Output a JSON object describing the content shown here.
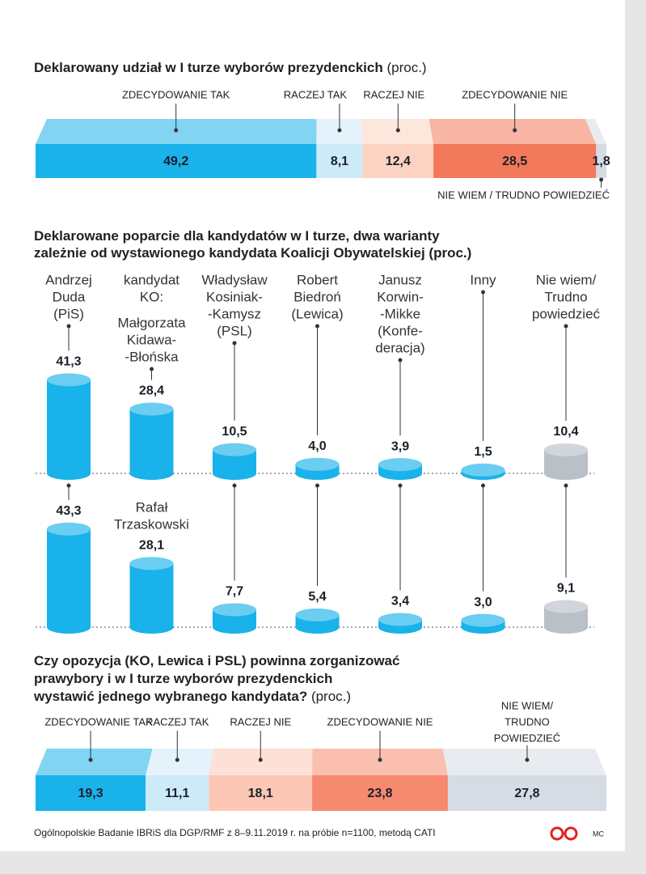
{
  "chart_data": [
    {
      "type": "stacked_bar",
      "title": "Deklarowany udział w I turze wyborów prezydenckich",
      "unit": "(proc.)",
      "categories": [
        "ZDECYDOWANIE TAK",
        "RACZEJ TAK",
        "RACZEJ NIE",
        "ZDECYDOWANIE NIE",
        "NIE WIEM / TRUDNO POWIEDZIEĆ"
      ],
      "values": [
        49.2,
        8.1,
        12.4,
        28.5,
        1.8
      ],
      "value_labels": [
        "49,2",
        "8,1",
        "12,4",
        "28,5",
        "1,8"
      ],
      "colors": [
        "#19b2ea",
        "#cdeaf8",
        "#fcd3c2",
        "#f2795a",
        "#d6dce3"
      ]
    },
    {
      "type": "cylinder",
      "title": [
        "Deklarowane poparcie dla kandydatów w I turze, dwa warianty",
        "zależnie od wystawionego kandydata Koalicji Obywatelskiej (proc.)"
      ],
      "categories": [
        [
          "Andrzej",
          "Duda",
          "(PiS)"
        ],
        [
          "kandydat",
          "KO:"
        ],
        [
          "Władysław",
          "Kosiniak-",
          "-Kamysz",
          "(PSL)"
        ],
        [
          "Robert",
          "Biedroń",
          "(Lewica)"
        ],
        [
          "Janusz",
          "Korwin-",
          "-Mikke",
          "(Konfe-",
          "deracja)"
        ],
        [
          "Inny"
        ],
        [
          "Nie wiem/",
          "Trudno",
          "powiedzieć"
        ]
      ],
      "colors": [
        "#19b2ea",
        "#19b2ea",
        "#19b2ea",
        "#19b2ea",
        "#19b2ea",
        "#19b2ea",
        "#b9c0c7"
      ],
      "series": [
        {
          "labels": [
            null,
            [
              "Małgorzata",
              "Kidawa-",
              "-Błońska"
            ],
            null,
            null,
            null,
            null,
            null
          ],
          "values": [
            41.3,
            28.4,
            10.5,
            4.0,
            3.9,
            1.5,
            10.4
          ],
          "value_labels": [
            "41,3",
            "28,4",
            "10,5",
            "4,0",
            "3,9",
            "1,5",
            "10,4"
          ]
        },
        {
          "labels": [
            null,
            [
              "Rafał",
              "Trzaskowski"
            ],
            null,
            null,
            null,
            null,
            null
          ],
          "values": [
            43.3,
            28.1,
            7.7,
            5.4,
            3.4,
            3.0,
            9.1
          ],
          "value_labels": [
            "43,3",
            "28,1",
            "7,7",
            "5,4",
            "3,4",
            "3,0",
            "9,1"
          ]
        }
      ]
    },
    {
      "type": "stacked_bar",
      "title": [
        "Czy opozycja (KO, Lewica i PSL) powinna zorganizować",
        "prawybory i w I turze wyborów prezydenckich",
        "wystawić jednego wybranego kandydata?"
      ],
      "unit": "(proc.)",
      "categories": [
        "ZDECYDOWANIE TAK",
        "RACZEJ TAK",
        "RACZEJ NIE",
        "ZDECYDOWANIE NIE",
        [
          "NIE WIEM/",
          "TRUDNO",
          "POWIEDZIEĆ"
        ]
      ],
      "values": [
        19.3,
        11.1,
        18.1,
        23.8,
        27.8
      ],
      "value_labels": [
        "19,3",
        "11,1",
        "18,1",
        "23,8",
        "27,8"
      ],
      "colors": [
        "#19b2ea",
        "#cdeaf8",
        "#fcc8b5",
        "#f58a6e",
        "#d6dce3"
      ]
    }
  ],
  "source": "Ogólnopolskie Badanie IBRiS dla DGP/RMF z 8–9.11.2019 r. na próbie n=1100, metodą CATI",
  "credit": "MC"
}
